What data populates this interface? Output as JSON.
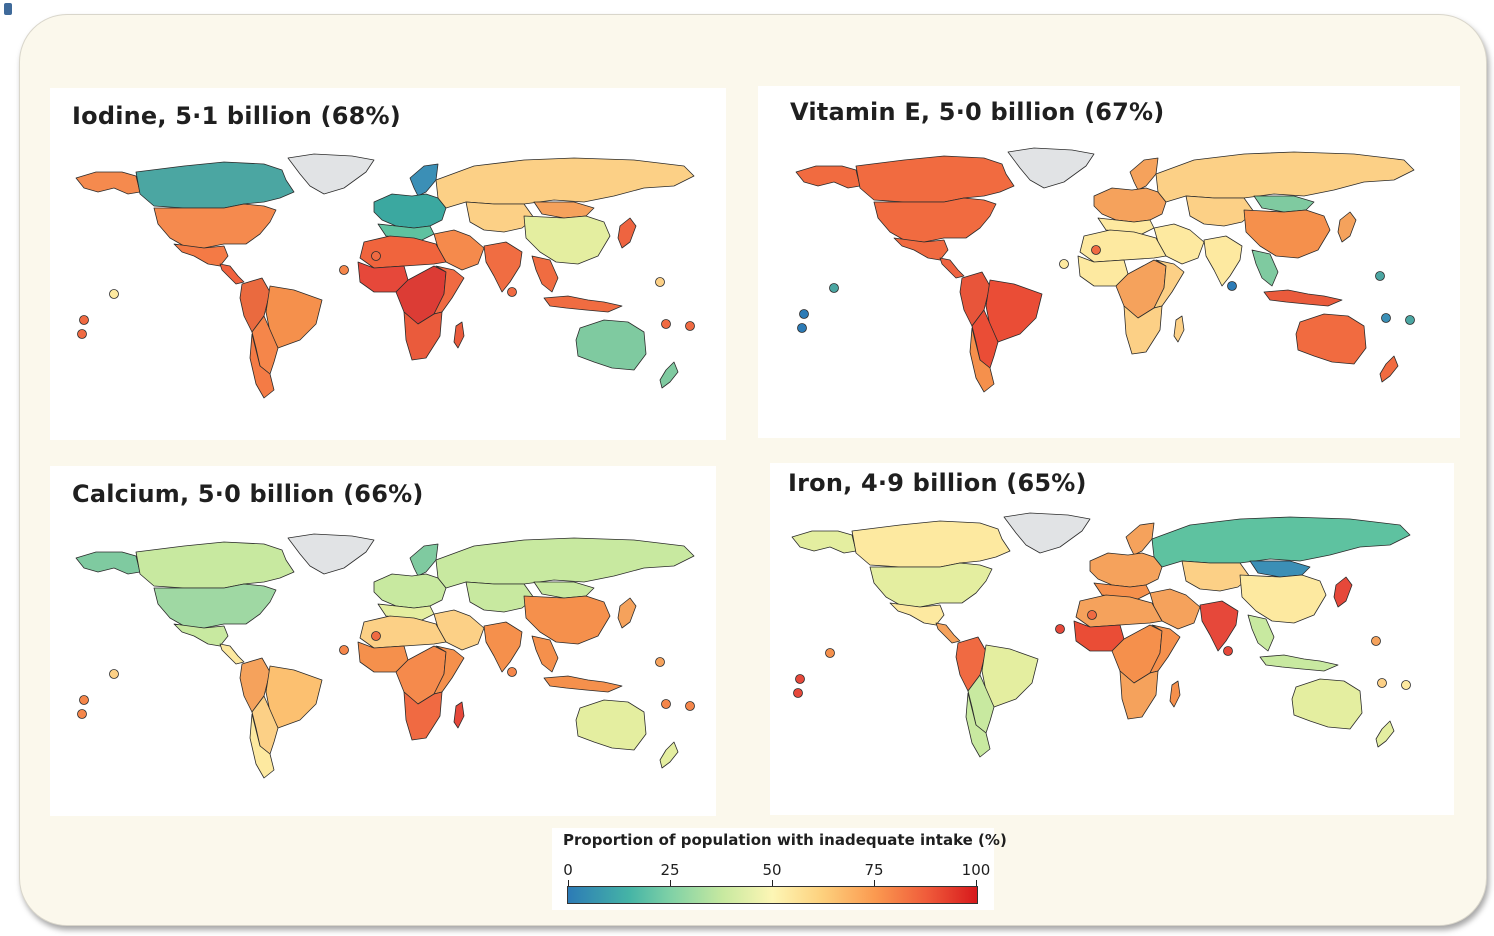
{
  "panels": [
    {
      "key": "iodine",
      "title": "Iodine, 5·1 billion (68%)",
      "colors": {
        "canada": "#4ba6a2",
        "alaska": "#f58a4e",
        "usa": "#f58a4e",
        "mexico": "#f47a45",
        "central_america": "#f0623f",
        "greenland": "#e1e3e5",
        "south_america": "#f5864a",
        "south_america_west": "#ea6a3f",
        "chile": "#f47b45",
        "brazil_east": "#f5904c",
        "russia": "#fcd086",
        "europe": "#3ba8a0",
        "europe_south": "#5ec2a0",
        "north_africa": "#f0643d",
        "west_africa": "#e6483a",
        "central_africa": "#dc3c35",
        "east_africa": "#f06a42",
        "southern_africa": "#ea5b3c",
        "madagascar": "#ea5b3c",
        "middle_east": "#f58a4c",
        "central_asia": "#fcd086",
        "india": "#f06d42",
        "china": "#e4eea0",
        "mongolia": "#f5a25c",
        "southeast_asia": "#f06c41",
        "indonesia": "#f06c41",
        "japan": "#ee6440",
        "australia": "#7fcaa0",
        "new_zealand": "#7fcaa0",
        "scandinavia": "#3b8fb6"
      },
      "islands": [
        "#f06a42",
        "#fde9a0",
        "#f06a42",
        "#f5864a",
        "#f06a42",
        "#f06a42",
        "#fcd086",
        "#f06a42",
        "#f06a42"
      ]
    },
    {
      "key": "vitamin-e",
      "title": "Vitamin E, 5·0 billion (67%)",
      "colors": {
        "canada": "#f16b40",
        "alaska": "#f16b40",
        "usa": "#f16b40",
        "mexico": "#f06a40",
        "central_america": "#ef6340",
        "greenland": "#e1e3e5",
        "south_america": "#ea4d36",
        "south_america_west": "#e8553a",
        "chile": "#f5904c",
        "brazil_east": "#ea4d36",
        "russia": "#fcd086",
        "europe": "#f5a25c",
        "europe_south": "#fde9a0",
        "north_africa": "#fde9a0",
        "west_africa": "#fde9a0",
        "central_africa": "#f5a25c",
        "east_africa": "#fcd086",
        "southern_africa": "#fcd086",
        "madagascar": "#fcd086",
        "middle_east": "#fde9a0",
        "central_asia": "#fcd086",
        "india": "#fde9a0",
        "china": "#f5904c",
        "mongolia": "#7fcaa0",
        "southeast_asia": "#7fcaa0",
        "indonesia": "#ea5b3c",
        "japan": "#f5a25c",
        "australia": "#f16b40",
        "new_zealand": "#f16b40",
        "scandinavia": "#f5a25c"
      },
      "islands": [
        "#2c7bb6",
        "#4ba6a2",
        "#2c7bb6",
        "#fde9a0",
        "#f06a42",
        "#2c7bb6",
        "#4ba6a2",
        "#3b8fb6",
        "#4ba6a2"
      ]
    },
    {
      "key": "calcium",
      "title": "Calcium, 5·0 billion (66%)",
      "colors": {
        "canada": "#c8e9a0",
        "alaska": "#7fcaa0",
        "usa": "#9fd8a3",
        "mexico": "#c8e9a0",
        "central_america": "#fde9a0",
        "greenland": "#e1e3e5",
        "south_america": "#fcd086",
        "south_america_west": "#f5a25c",
        "chile": "#fde9a0",
        "brazil_east": "#fcc070",
        "russia": "#c8e9a0",
        "europe": "#c8e9a0",
        "europe_south": "#e4eea0",
        "north_africa": "#fcd086",
        "west_africa": "#f5904c",
        "central_africa": "#f58a4c",
        "east_africa": "#f5904c",
        "southern_africa": "#f06a42",
        "madagascar": "#e6483a",
        "middle_east": "#fcd086",
        "central_asia": "#c8e9a0",
        "india": "#f5904c",
        "china": "#f5904c",
        "mongolia": "#c8e9a0",
        "southeast_asia": "#f5904c",
        "indonesia": "#f5904c",
        "japan": "#f5a25c",
        "australia": "#e4eea0",
        "new_zealand": "#e4eea0",
        "scandinavia": "#7fcaa0"
      },
      "islands": [
        "#f5864a",
        "#fcd086",
        "#f5864a",
        "#f5864a",
        "#f06a42",
        "#f5864a",
        "#f5a25c",
        "#f5864a",
        "#f5864a"
      ]
    },
    {
      "key": "iron",
      "title": "Iron, 4·9 billion (65%)",
      "colors": {
        "canada": "#fde9a0",
        "alaska": "#e4eea0",
        "usa": "#e4eea0",
        "mexico": "#fde9a0",
        "central_america": "#f5a25c",
        "greenland": "#e1e3e5",
        "south_america": "#c8e9a0",
        "south_america_west": "#f06a42",
        "chile": "#c8e9a0",
        "brazil_east": "#e4eea0",
        "russia": "#5ec2a0",
        "europe": "#f5a25c",
        "europe_south": "#f5904c",
        "north_africa": "#f5a25c",
        "west_africa": "#ea4d36",
        "central_africa": "#f5904c",
        "east_africa": "#f5904c",
        "southern_africa": "#f5a25c",
        "madagascar": "#f5904c",
        "middle_east": "#f5a25c",
        "central_asia": "#fcd086",
        "india": "#e6483a",
        "china": "#fde9a0",
        "mongolia": "#3b8fb6",
        "southeast_asia": "#c8e9a0",
        "indonesia": "#c8e9a0",
        "japan": "#e6483a",
        "australia": "#e4eea0",
        "new_zealand": "#e4eea0",
        "scandinavia": "#f5a25c"
      },
      "islands": [
        "#e6483a",
        "#f5904c",
        "#e6483a",
        "#e6483a",
        "#f06a42",
        "#e6483a",
        "#f5a25c",
        "#fcd086",
        "#fde9a0"
      ]
    }
  ],
  "legend": {
    "title": "Proportion of population with inadequate intake (%)",
    "ticks": [
      "0",
      "25",
      "50",
      "75",
      "100"
    ],
    "range": [
      0,
      100
    ],
    "tick_values": [
      0,
      25,
      50,
      75,
      100
    ]
  }
}
